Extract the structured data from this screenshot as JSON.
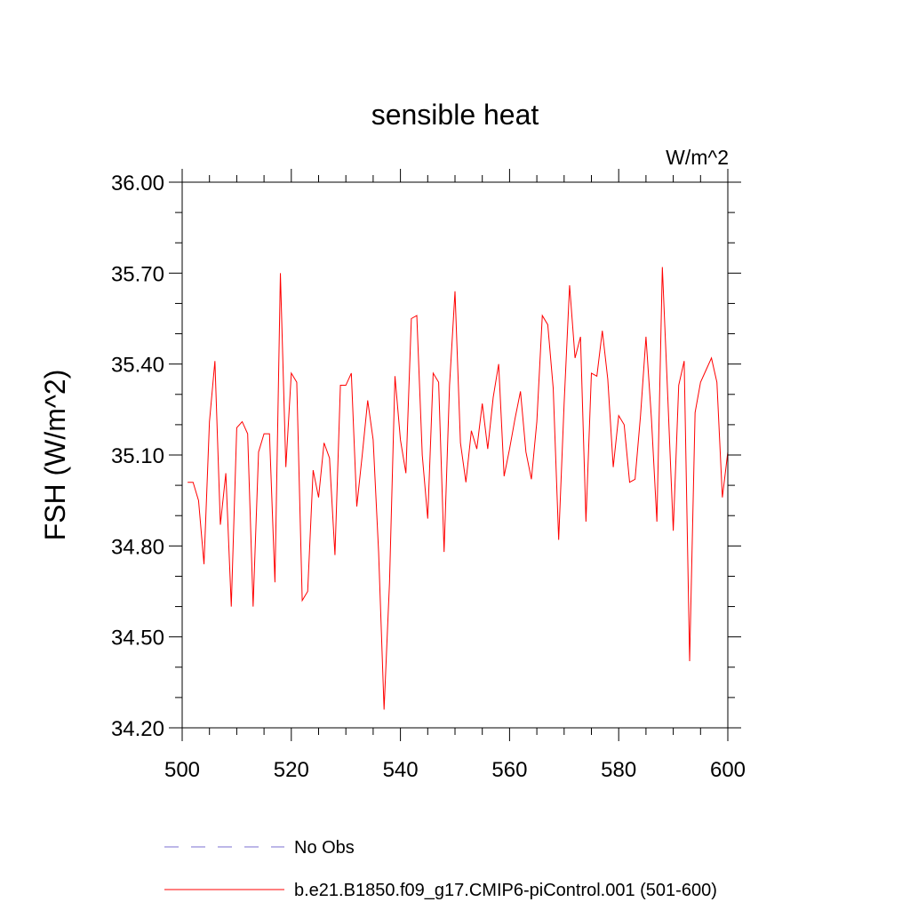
{
  "chart_data": {
    "type": "line",
    "title": "sensible heat",
    "units_label": "W/m^2",
    "ylabel": "FSH  (W/m^2)",
    "xlabel": "",
    "xlim": [
      500,
      600
    ],
    "ylim": [
      34.2,
      36.0
    ],
    "x_ticks": [
      500,
      520,
      540,
      560,
      580,
      600
    ],
    "x_tick_labels": [
      "500",
      "520",
      "540",
      "560",
      "580",
      "600"
    ],
    "y_ticks": [
      34.2,
      34.5,
      34.8,
      35.1,
      35.4,
      35.7,
      36.0
    ],
    "y_tick_labels": [
      "34.20",
      "34.50",
      "34.80",
      "35.10",
      "35.40",
      "35.70",
      "36.00"
    ],
    "grid": false,
    "series": [
      {
        "name": "b.e21.B1850.f09_g17.CMIP6-piControl.001 (501-600)",
        "color": "#ff0000",
        "style": "solid",
        "x_start": 501,
        "values": [
          35.01,
          35.01,
          34.95,
          34.74,
          35.21,
          35.41,
          34.87,
          35.04,
          34.6,
          35.19,
          35.21,
          35.17,
          34.6,
          35.11,
          35.17,
          35.17,
          34.68,
          35.7,
          35.06,
          35.37,
          35.34,
          34.62,
          34.65,
          35.05,
          34.96,
          35.14,
          35.09,
          34.77,
          35.33,
          35.33,
          35.37,
          34.93,
          35.1,
          35.28,
          35.15,
          34.78,
          34.26,
          34.68,
          35.36,
          35.15,
          35.04,
          35.55,
          35.56,
          35.1,
          34.89,
          35.37,
          35.34,
          34.78,
          35.33,
          35.64,
          35.14,
          35.01,
          35.18,
          35.12,
          35.27,
          35.12,
          35.29,
          35.4,
          35.03,
          35.12,
          35.22,
          35.31,
          35.11,
          35.02,
          35.21,
          35.56,
          35.53,
          35.32,
          34.82,
          35.27,
          35.66,
          35.42,
          35.49,
          34.88,
          35.37,
          35.36,
          35.51,
          35.35,
          35.06,
          35.23,
          35.2,
          35.01,
          35.02,
          35.23,
          35.49,
          35.22,
          34.88,
          35.72,
          35.29,
          34.85,
          35.33,
          35.41,
          34.42,
          35.24,
          35.34,
          35.38,
          35.42,
          35.34,
          34.96,
          35.11
        ]
      },
      {
        "name": "No Obs",
        "color": "#7b6fd0",
        "style": "dashed",
        "x_start": null,
        "values": []
      }
    ],
    "legend": [
      {
        "label": "No Obs",
        "color": "#7b6fd0",
        "style": "dashed"
      },
      {
        "label": "b.e21.B1850.f09_g17.CMIP6-piControl.001 (501-600)",
        "color": "#ff0000",
        "style": "solid"
      }
    ],
    "legend_position": "bottom"
  }
}
